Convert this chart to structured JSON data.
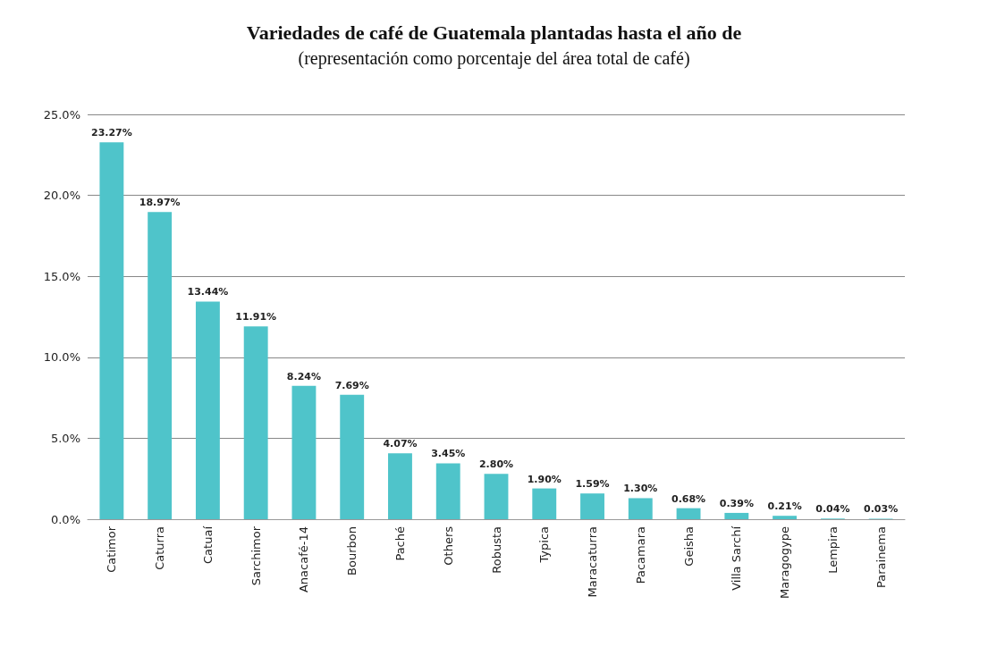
{
  "chart_data": {
    "type": "bar",
    "title": "Variedades de café de Guatemala plantadas hasta el año de",
    "subtitle": "(representación como porcentaje del área total de café)",
    "categories": [
      "Catimor",
      "Caturra",
      "Catuaí",
      "Sarchimor",
      "Anacafé-14",
      "Bourbon",
      "Paché",
      "Others",
      "Robusta",
      "Typica",
      "Maracaturra",
      "Pacamara",
      "Geisha",
      "Villa Sarchí",
      "Maragogype",
      "Lempira",
      "Parainema"
    ],
    "values": [
      23.27,
      18.97,
      13.44,
      11.91,
      8.24,
      7.69,
      4.07,
      3.45,
      2.8,
      1.9,
      1.59,
      1.3,
      0.68,
      0.39,
      0.21,
      0.04,
      0.03
    ],
    "value_labels": [
      "23.27%",
      "18.97%",
      "13.44%",
      "11.91%",
      "8.24%",
      "7.69%",
      "4.07%",
      "3.45%",
      "2.80%",
      "1.90%",
      "1.59%",
      "1.30%",
      "0.68%",
      "0.39%",
      "0.21%",
      "0.04%",
      "0.03%"
    ],
    "color": "#4fc4ca",
    "ylim": [
      0,
      25
    ],
    "yticks": [
      {
        "value": 0,
        "label": "0.0%"
      },
      {
        "value": 5,
        "label": "5.0%"
      },
      {
        "value": 10,
        "label": "10.0%"
      },
      {
        "value": 15,
        "label": "15.0%"
      },
      {
        "value": 20,
        "label": "20.0%"
      },
      {
        "value": 25,
        "label": "25.0%"
      }
    ],
    "grid": "y"
  }
}
